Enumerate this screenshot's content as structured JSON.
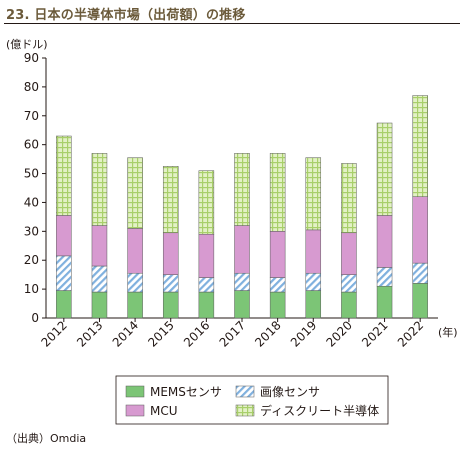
{
  "title": "23. 日本の半導体市場（出荷額）の推移",
  "source": "（出典）Omdia",
  "chart_data": {
    "type": "bar",
    "stacked": true,
    "categories": [
      "2012",
      "2013",
      "2014",
      "2015",
      "2016",
      "2017",
      "2018",
      "2019",
      "2020",
      "2021",
      "2022"
    ],
    "x_unit": "(年)",
    "ylabel": "(億ドル)",
    "ylim": [
      0,
      90
    ],
    "yticks": [
      0,
      10,
      20,
      30,
      40,
      50,
      60,
      70,
      80,
      90
    ],
    "grid": false,
    "legend_position": "bottom",
    "series": [
      {
        "name": "MEMSセンサ",
        "color": "#7cc576",
        "pattern": "solid",
        "values": [
          9.5,
          9,
          9,
          9,
          9,
          9.5,
          9,
          9.5,
          9,
          11,
          12
        ]
      },
      {
        "name": "画像センサ",
        "color": "#9dc3e6",
        "pattern": "diagonal",
        "values": [
          12,
          9,
          6.5,
          6,
          5,
          6,
          5,
          6,
          6,
          6.5,
          7
        ]
      },
      {
        "name": "MCU",
        "color": "#d79ad0",
        "pattern": "solid",
        "values": [
          14,
          14,
          15.5,
          14.5,
          15,
          16.5,
          16,
          15,
          14.5,
          18,
          23
        ]
      },
      {
        "name": "ディスクリート半導体",
        "color": "#d6ebb0",
        "pattern": "grid",
        "values": [
          27.5,
          25,
          24.5,
          23,
          22,
          25,
          27,
          25,
          24,
          32,
          35
        ]
      }
    ]
  }
}
